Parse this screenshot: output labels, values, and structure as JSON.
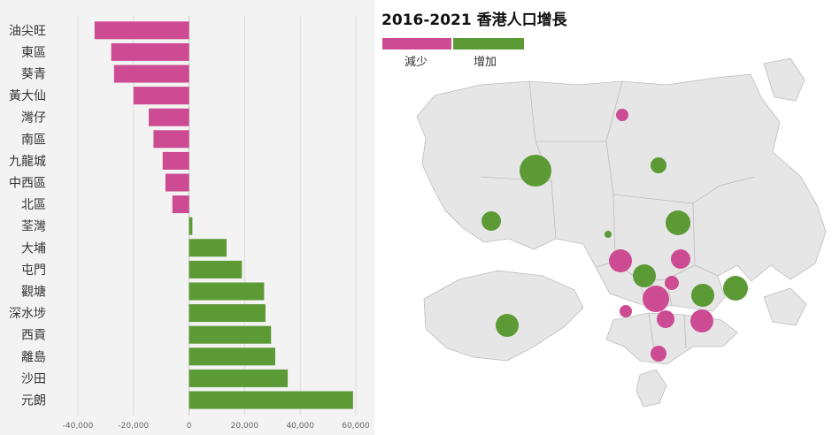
{
  "chart_data": [
    {
      "type": "bar",
      "orientation": "horizontal",
      "categories": [
        "油尖旺",
        "東區",
        "葵青",
        "黃大仙",
        "灣仔",
        "南區",
        "九龍城",
        "中西區",
        "北區",
        "荃灣",
        "大埔",
        "屯門",
        "觀塘",
        "深水埗",
        "西貢",
        "離島",
        "沙田",
        "元朗"
      ],
      "values": [
        -34000,
        -28000,
        -27000,
        -20000,
        -14500,
        -12800,
        -9500,
        -8500,
        -6000,
        1200,
        13500,
        19000,
        27000,
        27500,
        29500,
        31000,
        35500,
        59000
      ],
      "xlim": [
        -40000,
        60000
      ],
      "xticks": [
        -40000,
        -20000,
        0,
        20000,
        40000,
        60000
      ],
      "xtick_labels": [
        "-40,000",
        "-20,000",
        "0",
        "20,000",
        "40,000",
        "60,000"
      ],
      "grid": "vertical",
      "colors": {
        "negative": "#cc4b93",
        "positive": "#5b9a34"
      }
    },
    {
      "type": "bubble-map",
      "title": "2016-2021 香港人口增長",
      "legend": [
        {
          "label": "減少",
          "color": "#cc4b93"
        },
        {
          "label": "增加",
          "color": "#5b9a34"
        }
      ],
      "legend_placement": "top-left"
    }
  ],
  "colors": {
    "map_land": "#e6e6e6",
    "map_border": "#bdbdbd",
    "panel_bg": "#f3f3f3"
  }
}
